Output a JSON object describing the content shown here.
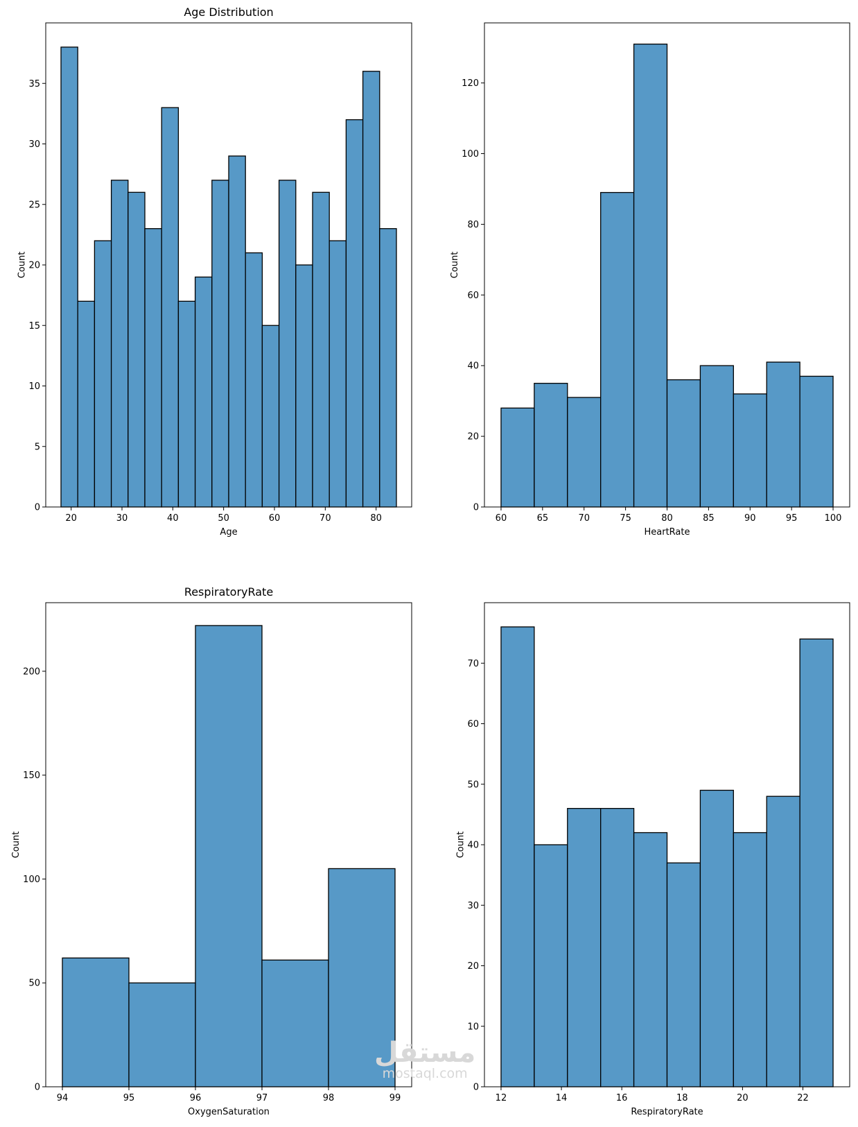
{
  "style": {
    "bar_fill": "#5799c7",
    "bar_edge": "#000000",
    "axis_color": "#000000"
  },
  "watermark": {
    "arabic": "مستقل",
    "latin": "mostaql.com"
  },
  "chart_data": [
    {
      "type": "bar",
      "histogram": true,
      "title": "Age Distribution",
      "xlabel": "Age",
      "ylabel": "Count",
      "xlim": [
        15,
        87
      ],
      "ylim": [
        0,
        40
      ],
      "xticks": [
        20,
        30,
        40,
        50,
        60,
        70,
        80
      ],
      "yticks": [
        0,
        5,
        10,
        15,
        20,
        25,
        30,
        35
      ],
      "bin_start": 18,
      "bin_width": 3.3,
      "values": [
        38,
        17,
        22,
        27,
        26,
        23,
        33,
        17,
        19,
        27,
        29,
        21,
        15,
        27,
        20,
        26,
        22,
        32,
        36,
        23
      ],
      "grid": false
    },
    {
      "type": "bar",
      "histogram": true,
      "title": "",
      "xlabel": "HeartRate",
      "ylabel": "Count",
      "xlim": [
        58,
        102
      ],
      "ylim": [
        0,
        137
      ],
      "xticks": [
        60,
        65,
        70,
        75,
        80,
        85,
        90,
        95,
        100
      ],
      "yticks": [
        0,
        20,
        40,
        60,
        80,
        100,
        120
      ],
      "bin_start": 60,
      "bin_width": 4,
      "values": [
        28,
        35,
        31,
        89,
        131,
        36,
        40,
        32,
        41,
        37
      ],
      "grid": false
    },
    {
      "type": "bar",
      "histogram": true,
      "title": "RespiratoryRate",
      "xlabel": "OxygenSaturation",
      "ylabel": "Count",
      "xlim": [
        93.75,
        99.25
      ],
      "ylim": [
        0,
        233
      ],
      "xticks": [
        94,
        95,
        96,
        97,
        98,
        99
      ],
      "yticks": [
        0,
        50,
        100,
        150,
        200
      ],
      "bin_start": 94,
      "bin_width": 1,
      "values": [
        62,
        50,
        222,
        61,
        105
      ],
      "grid": false
    },
    {
      "type": "bar",
      "histogram": true,
      "title": "",
      "xlabel": "RespiratoryRate",
      "ylabel": "Count",
      "xlim": [
        11.45,
        23.55
      ],
      "ylim": [
        0,
        80
      ],
      "xticks": [
        12,
        14,
        16,
        18,
        20,
        22
      ],
      "yticks": [
        0,
        10,
        20,
        30,
        40,
        50,
        60,
        70
      ],
      "bin_start": 12,
      "bin_width": 1.1,
      "values": [
        76,
        40,
        46,
        46,
        42,
        37,
        49,
        42,
        48,
        74
      ],
      "grid": false
    }
  ]
}
